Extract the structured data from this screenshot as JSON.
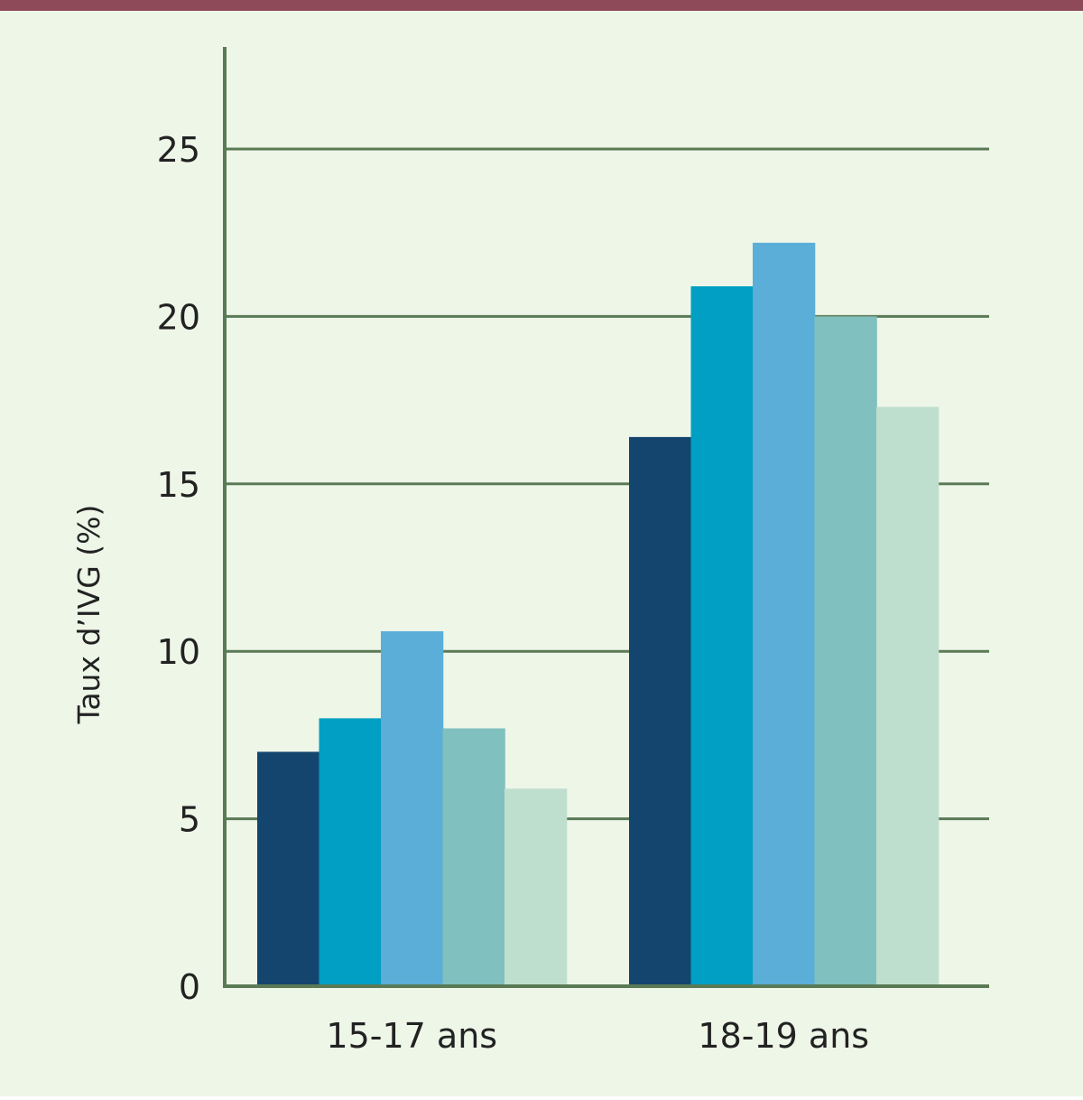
{
  "colors": {
    "background": "#eef6e8",
    "top_rule": "#8e4a58",
    "axis": "#5a7a55",
    "grid": "#5a7a55",
    "text": "#222222",
    "series": [
      "#14456f",
      "#009fc3",
      "#5aaed8",
      "#80c0be",
      "#bfdfce"
    ]
  },
  "chart_data": {
    "type": "bar",
    "title": "",
    "xlabel": "",
    "ylabel": "Taux d’IVG (%)",
    "categories": [
      "15-17 ans",
      "18-19 ans"
    ],
    "series": [
      {
        "values": [
          7.0,
          16.4
        ]
      },
      {
        "values": [
          8.0,
          20.9
        ]
      },
      {
        "values": [
          10.6,
          22.2
        ]
      },
      {
        "values": [
          7.7,
          20.0
        ]
      },
      {
        "values": [
          5.9,
          17.3
        ]
      }
    ],
    "ylim": [
      0,
      28
    ],
    "yticks": [
      0,
      5,
      10,
      15,
      20,
      25
    ],
    "grid": true,
    "legend": "none"
  }
}
